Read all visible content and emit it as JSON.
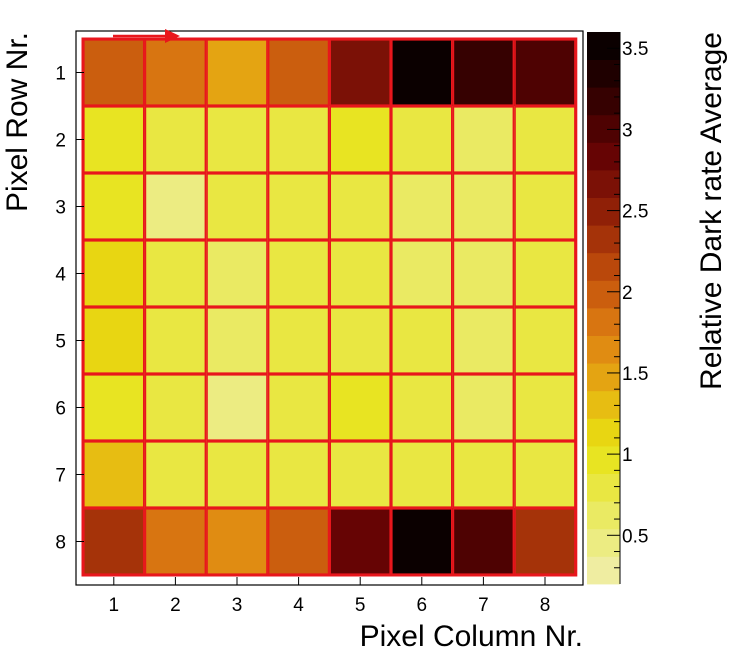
{
  "chart_data": {
    "type": "heatmap",
    "xlabel": "Pixel Column Nr.",
    "ylabel": "Pixel Row Nr.",
    "colorbar_label": "Relative Dark rate Average",
    "x_ticks": [
      "1",
      "2",
      "3",
      "4",
      "5",
      "6",
      "7",
      "8"
    ],
    "y_ticks": [
      "1",
      "2",
      "3",
      "4",
      "5",
      "6",
      "7",
      "8"
    ],
    "colorbar_ticks": [
      "0.5",
      "1",
      "1.5",
      "2",
      "2.5",
      "3",
      "3.5"
    ],
    "colorbar_range": [
      0.2,
      3.6
    ],
    "colorbar_bins": 20,
    "grid_color": "#e8161c",
    "arrow_color": "#e8161c",
    "annotation": "arrow above row 1 pointing right (readout direction)",
    "rows": [
      [
        2.05,
        1.85,
        1.55,
        1.9,
        2.7,
        3.6,
        3.2,
        2.95
      ],
      [
        0.95,
        0.75,
        0.8,
        0.8,
        0.95,
        0.8,
        0.55,
        0.8
      ],
      [
        0.9,
        0.5,
        0.8,
        0.8,
        0.8,
        0.6,
        0.6,
        0.75
      ],
      [
        1.05,
        0.75,
        0.55,
        0.75,
        0.75,
        0.6,
        0.65,
        0.75
      ],
      [
        1.05,
        0.75,
        0.55,
        0.75,
        0.8,
        0.75,
        0.6,
        0.75
      ],
      [
        1.0,
        0.75,
        0.5,
        0.8,
        0.9,
        0.75,
        0.55,
        0.75
      ],
      [
        1.25,
        0.85,
        0.75,
        0.85,
        0.8,
        0.8,
        0.75,
        0.75
      ],
      [
        2.4,
        1.8,
        1.6,
        2.05,
        2.75,
        3.45,
        3.05,
        2.35
      ]
    ]
  }
}
